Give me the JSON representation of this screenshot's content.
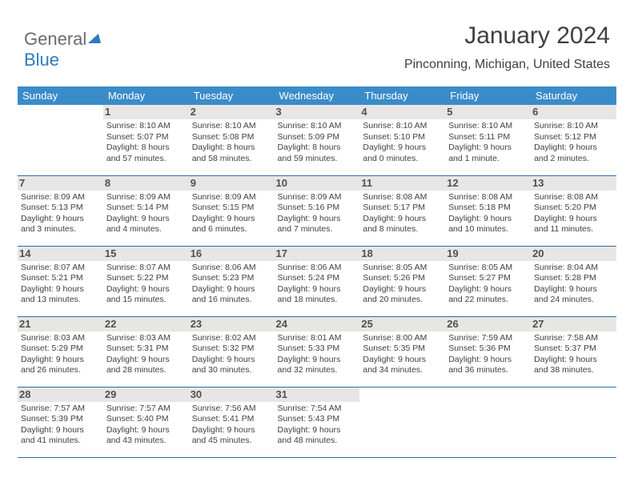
{
  "logo": {
    "text_gray": "General",
    "text_blue": "Blue",
    "triangle_color": "#2f7bbf"
  },
  "title": "January 2024",
  "location": "Pinconning, Michigan, United States",
  "colors": {
    "header_bg": "#3a8cc9",
    "header_text": "#ffffff",
    "rule": "#2b6fa8",
    "daynum_bg": "#e8e6e4",
    "body_text": "#404040"
  },
  "weekdays": [
    "Sunday",
    "Monday",
    "Tuesday",
    "Wednesday",
    "Thursday",
    "Friday",
    "Saturday"
  ],
  "grid": [
    [
      {
        "empty": true
      },
      {
        "n": "1",
        "sr": "8:10 AM",
        "ss": "5:07 PM",
        "dl": "8 hours and 57 minutes."
      },
      {
        "n": "2",
        "sr": "8:10 AM",
        "ss": "5:08 PM",
        "dl": "8 hours and 58 minutes."
      },
      {
        "n": "3",
        "sr": "8:10 AM",
        "ss": "5:09 PM",
        "dl": "8 hours and 59 minutes."
      },
      {
        "n": "4",
        "sr": "8:10 AM",
        "ss": "5:10 PM",
        "dl": "9 hours and 0 minutes."
      },
      {
        "n": "5",
        "sr": "8:10 AM",
        "ss": "5:11 PM",
        "dl": "9 hours and 1 minute."
      },
      {
        "n": "6",
        "sr": "8:10 AM",
        "ss": "5:12 PM",
        "dl": "9 hours and 2 minutes."
      }
    ],
    [
      {
        "n": "7",
        "sr": "8:09 AM",
        "ss": "5:13 PM",
        "dl": "9 hours and 3 minutes."
      },
      {
        "n": "8",
        "sr": "8:09 AM",
        "ss": "5:14 PM",
        "dl": "9 hours and 4 minutes."
      },
      {
        "n": "9",
        "sr": "8:09 AM",
        "ss": "5:15 PM",
        "dl": "9 hours and 6 minutes."
      },
      {
        "n": "10",
        "sr": "8:09 AM",
        "ss": "5:16 PM",
        "dl": "9 hours and 7 minutes."
      },
      {
        "n": "11",
        "sr": "8:08 AM",
        "ss": "5:17 PM",
        "dl": "9 hours and 8 minutes."
      },
      {
        "n": "12",
        "sr": "8:08 AM",
        "ss": "5:18 PM",
        "dl": "9 hours and 10 minutes."
      },
      {
        "n": "13",
        "sr": "8:08 AM",
        "ss": "5:20 PM",
        "dl": "9 hours and 11 minutes."
      }
    ],
    [
      {
        "n": "14",
        "sr": "8:07 AM",
        "ss": "5:21 PM",
        "dl": "9 hours and 13 minutes."
      },
      {
        "n": "15",
        "sr": "8:07 AM",
        "ss": "5:22 PM",
        "dl": "9 hours and 15 minutes."
      },
      {
        "n": "16",
        "sr": "8:06 AM",
        "ss": "5:23 PM",
        "dl": "9 hours and 16 minutes."
      },
      {
        "n": "17",
        "sr": "8:06 AM",
        "ss": "5:24 PM",
        "dl": "9 hours and 18 minutes."
      },
      {
        "n": "18",
        "sr": "8:05 AM",
        "ss": "5:26 PM",
        "dl": "9 hours and 20 minutes."
      },
      {
        "n": "19",
        "sr": "8:05 AM",
        "ss": "5:27 PM",
        "dl": "9 hours and 22 minutes."
      },
      {
        "n": "20",
        "sr": "8:04 AM",
        "ss": "5:28 PM",
        "dl": "9 hours and 24 minutes."
      }
    ],
    [
      {
        "n": "21",
        "sr": "8:03 AM",
        "ss": "5:29 PM",
        "dl": "9 hours and 26 minutes."
      },
      {
        "n": "22",
        "sr": "8:03 AM",
        "ss": "5:31 PM",
        "dl": "9 hours and 28 minutes."
      },
      {
        "n": "23",
        "sr": "8:02 AM",
        "ss": "5:32 PM",
        "dl": "9 hours and 30 minutes."
      },
      {
        "n": "24",
        "sr": "8:01 AM",
        "ss": "5:33 PM",
        "dl": "9 hours and 32 minutes."
      },
      {
        "n": "25",
        "sr": "8:00 AM",
        "ss": "5:35 PM",
        "dl": "9 hours and 34 minutes."
      },
      {
        "n": "26",
        "sr": "7:59 AM",
        "ss": "5:36 PM",
        "dl": "9 hours and 36 minutes."
      },
      {
        "n": "27",
        "sr": "7:58 AM",
        "ss": "5:37 PM",
        "dl": "9 hours and 38 minutes."
      }
    ],
    [
      {
        "n": "28",
        "sr": "7:57 AM",
        "ss": "5:39 PM",
        "dl": "9 hours and 41 minutes."
      },
      {
        "n": "29",
        "sr": "7:57 AM",
        "ss": "5:40 PM",
        "dl": "9 hours and 43 minutes."
      },
      {
        "n": "30",
        "sr": "7:56 AM",
        "ss": "5:41 PM",
        "dl": "9 hours and 45 minutes."
      },
      {
        "n": "31",
        "sr": "7:54 AM",
        "ss": "5:43 PM",
        "dl": "9 hours and 48 minutes."
      },
      {
        "empty": true
      },
      {
        "empty": true
      },
      {
        "empty": true
      }
    ]
  ],
  "labels": {
    "sunrise_prefix": "Sunrise: ",
    "sunset_prefix": "Sunset: ",
    "daylight_prefix": "Daylight: "
  }
}
